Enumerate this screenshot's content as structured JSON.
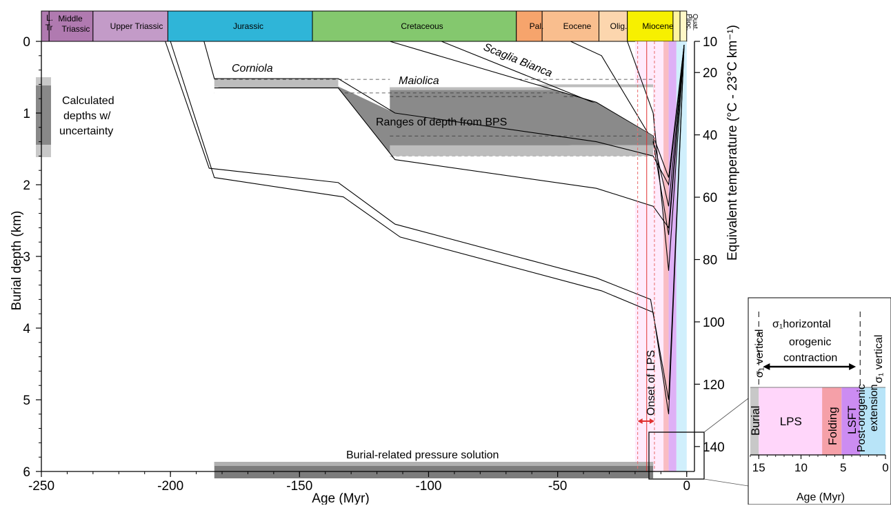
{
  "chart_data": {
    "type": "line",
    "xlabel": "Age (Myr)",
    "ylabel": "Burial depth (km)",
    "y2label": "Equivalent temperature (°C - 23°C km⁻¹)",
    "xlim": [
      -250,
      3
    ],
    "ylim": [
      0,
      6
    ],
    "x_ticks": [
      -250,
      -200,
      -150,
      -100,
      -50,
      0
    ],
    "y_ticks": [
      0,
      1,
      2,
      3,
      4,
      5,
      6
    ],
    "y2_ticks": [
      10,
      20,
      40,
      60,
      80,
      100,
      120,
      140
    ],
    "timescale": [
      {
        "label": "L. Tr",
        "start": -252,
        "end": -247,
        "color": "#b07ab0"
      },
      {
        "label": "Middle Triassic",
        "start": -247,
        "end": -230,
        "color": "#b07ab0"
      },
      {
        "label": "Upper Triassic",
        "start": -230,
        "end": -201,
        "color": "#c39bc8"
      },
      {
        "label": "Jurassic",
        "start": -201,
        "end": -145,
        "color": "#2fb5d8"
      },
      {
        "label": "Cretaceous",
        "start": -145,
        "end": -66,
        "color": "#84c86e"
      },
      {
        "label": "Pal.",
        "start": -66,
        "end": -56,
        "color": "#f6a46c"
      },
      {
        "label": "Eocene",
        "start": -56,
        "end": -34,
        "color": "#f9be8e"
      },
      {
        "label": "Olig.",
        "start": -34,
        "end": -23,
        "color": "#fcd6ae"
      },
      {
        "label": "Miocene",
        "start": -23,
        "end": -5.3,
        "color": "#f7f000"
      },
      {
        "label": "Plioc.",
        "start": -5.3,
        "end": -2.6,
        "color": "#fff5a0"
      },
      {
        "label": "Quat.",
        "start": -2.6,
        "end": 0,
        "color": "#fff8c8"
      }
    ],
    "burial_curves": [
      {
        "x": [
          -202,
          -185,
          -135,
          -113,
          -35,
          -14,
          -7,
          -1
        ],
        "y": [
          0,
          1.77,
          1.97,
          2.55,
          3.3,
          3.6,
          5.0,
          0.05
        ]
      },
      {
        "x": [
          -200,
          -183,
          -133,
          -111,
          -33,
          -13,
          -7,
          -1
        ],
        "y": [
          0,
          1.9,
          2.17,
          2.73,
          3.48,
          3.78,
          5.2,
          0.05
        ]
      },
      {
        "x": [
          -187,
          -183,
          -135,
          -113,
          -35,
          -13,
          -7,
          -1
        ],
        "y": [
          0,
          0.52,
          0.52,
          1.0,
          1.4,
          1.6,
          2.0,
          0.05
        ]
      },
      {
        "x": [
          -183,
          -135,
          -113,
          -35,
          -13,
          -7,
          -1
        ],
        "y": [
          0.65,
          0.65,
          1.65,
          2.05,
          2.3,
          2.6,
          0.05
        ]
      },
      {
        "x": [
          -115,
          -35,
          -13,
          -7,
          -1
        ],
        "y": [
          0,
          0.85,
          1.32,
          1.9,
          0.05
        ]
      },
      {
        "x": [
          -95,
          -35,
          -13,
          -7,
          -1
        ],
        "y": [
          0,
          0.87,
          1.36,
          2.3,
          0.05
        ]
      },
      {
        "x": [
          -45,
          -33,
          -13,
          -7,
          -1
        ],
        "y": [
          0,
          0.2,
          1.4,
          2.7,
          0.05
        ]
      },
      {
        "x": [
          -23,
          -13,
          -7,
          -1
        ],
        "y": [
          0,
          1.0,
          3.2,
          0.05
        ]
      }
    ],
    "bps_ranges": [
      {
        "name": "Corniola",
        "x": [
          -183,
          -135,
          -113,
          -35,
          -13
        ],
        "y_top": [
          0.53,
          0.53,
          1.0,
          1.42,
          1.6
        ],
        "y_bottom": [
          0.65,
          0.65,
          1.1,
          1.45,
          1.62
        ]
      },
      {
        "name": "Maiolica",
        "x": [
          -115,
          -35,
          -13
        ],
        "y_top": [
          0.63,
          0.9,
          1.35
        ],
        "y_bottom": [
          1.6,
          1.6,
          1.6
        ]
      }
    ],
    "annotations": {
      "corniola": "Corniola",
      "maiolica": "Maiolica",
      "scaglia": "Scaglia Bianca",
      "bps": "Ranges of depth from BPS",
      "burial_ps": "Burial-related pressure solution",
      "onset": "Onset of LPS",
      "calc_line1": "Calculated",
      "calc_line2": "depths w/",
      "calc_line3": "uncertainty"
    },
    "inset": {
      "xlabel": "Age (Myr)",
      "x_ticks": [
        15,
        10,
        5,
        0
      ],
      "xlim": [
        16,
        0
      ],
      "phases": [
        {
          "label": "Burial",
          "start": 16,
          "end": 15,
          "color": "#c8c8c8"
        },
        {
          "label": "LPS",
          "start": 15,
          "end": 7.5,
          "color": "#ffd6fa"
        },
        {
          "label": "Folding",
          "start": 7.5,
          "end": 5.2,
          "color": "#f5a0a8"
        },
        {
          "label": "LSFT",
          "start": 5.2,
          "end": 3.0,
          "color": "#cc8cf2"
        },
        {
          "label": "Post-orogenic extension",
          "start": 3.0,
          "end": 0,
          "color": "#b8e4f8"
        }
      ],
      "sigma_vertical": "σ₁ vertical",
      "sigma_horizontal": "σ₁horizontal",
      "contraction_line1": "orogenic",
      "contraction_line2": "contraction",
      "post_line1": "Post-orogenic",
      "post_line2": "extension"
    }
  }
}
